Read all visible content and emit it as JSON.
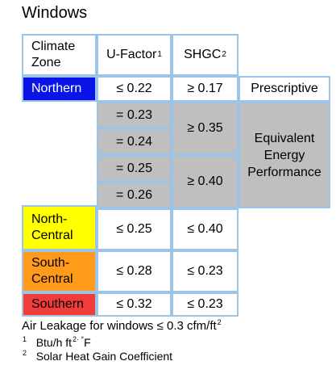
{
  "title": "Windows",
  "header": {
    "climate_zone_line1": "Climate",
    "climate_zone_line2": "Zone",
    "u_factor": "U-Factor",
    "u_factor_sup": "1",
    "shgc": "SHGC",
    "shgc_sup": "2"
  },
  "zones": {
    "northern": {
      "label": "Northern",
      "color": "#0a14e6"
    },
    "north_central": {
      "label_line1": "North-",
      "label_line2": "Central",
      "color": "#ffff00"
    },
    "south_central": {
      "label_line1": "South-",
      "label_line2": "Central",
      "color": "#ff9a1a"
    },
    "southern": {
      "label": "Southern",
      "color": "#f23c3c"
    }
  },
  "values": {
    "northern_u": "≤ 0.22",
    "northern_shgc": "≥ 0.17",
    "prescriptive": "Prescriptive",
    "equiv_u": [
      "= 0.23",
      "= 0.24",
      "= 0.25",
      "= 0.26"
    ],
    "equiv_shgc_a": "≥ 0.35",
    "equiv_shgc_b": "≥ 0.40",
    "equiv_label_line1": "Equivalent",
    "equiv_label_line2": "Energy",
    "equiv_label_line3": "Performance",
    "north_central_u": "≤ 0.25",
    "north_central_shgc": "≤ 0.40",
    "south_central_u": "≤ 0.28",
    "south_central_shgc": "≤ 0.23",
    "southern_u": "≤ 0.32",
    "southern_shgc": "≤ 0.23"
  },
  "notes": {
    "air_leakage": "Air Leakage for windows ≤ 0.3 cfm/ft",
    "air_leakage_sup": "2",
    "fn1_marker": "1",
    "fn1_text_a": "Btu/h ft",
    "fn1_text_sup": "2· °",
    "fn1_text_b": "F",
    "fn2_marker": "2",
    "fn2_text": "Solar Heat Gain Coefficient"
  }
}
